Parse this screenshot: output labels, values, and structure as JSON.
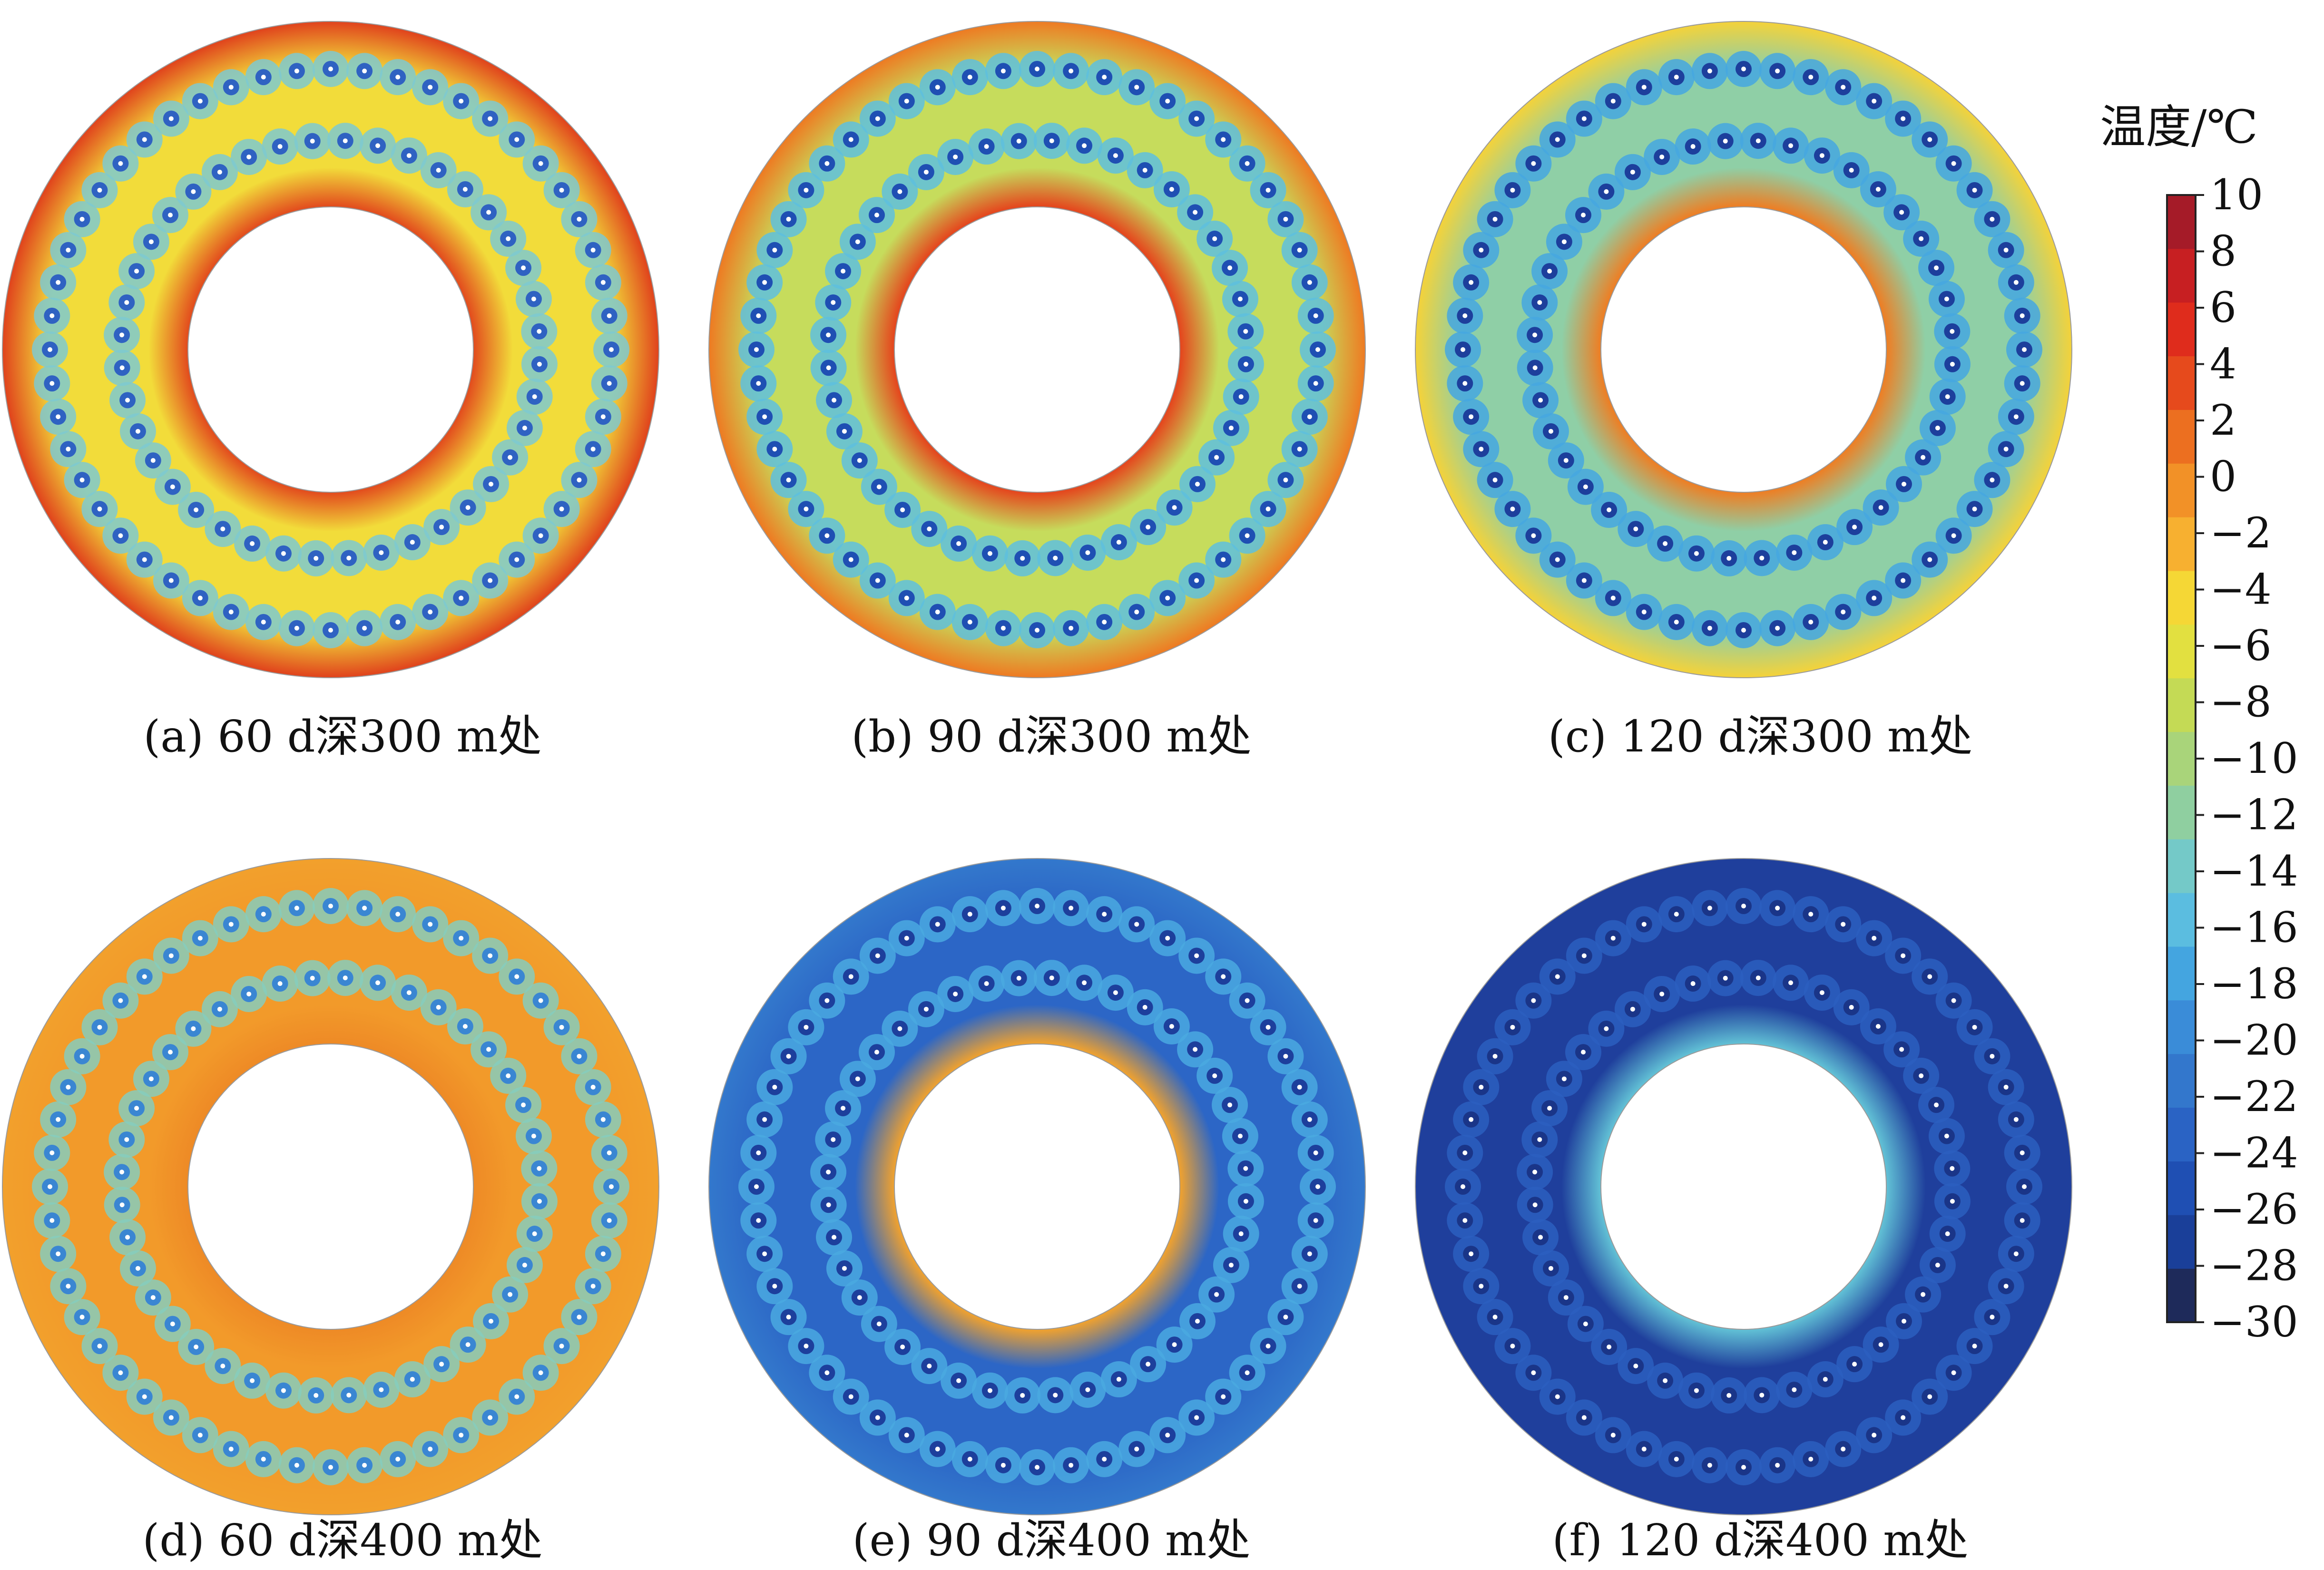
{
  "chart_data": {
    "type": "heatmap",
    "title": "",
    "colorbar": {
      "title": "温度/℃",
      "min": -30,
      "max": 10,
      "ticks": [
        10,
        8,
        6,
        4,
        2,
        0,
        -2,
        -4,
        -6,
        -8,
        -10,
        -12,
        -14,
        -16,
        -18,
        -20,
        -22,
        -24,
        -26,
        -28,
        -30
      ],
      "tick_labels": [
        "10",
        "8",
        "6",
        "4",
        "2",
        "0",
        "−2",
        "−4",
        "−6",
        "−8",
        "−10",
        "−12",
        "−14",
        "−16",
        "−18",
        "−20",
        "−22",
        "−24",
        "−26",
        "−28",
        "−30"
      ],
      "colors": [
        "#1e2a5a",
        "#1a3f99",
        "#1f4fb3",
        "#2a63c4",
        "#3377cc",
        "#3a8cd8",
        "#44a5e0",
        "#5bbde0",
        "#74c9c8",
        "#8fcfa0",
        "#a9d47a",
        "#c4da55",
        "#e2e040",
        "#f5d735",
        "#f7b030",
        "#f29127",
        "#ec6f20",
        "#e64a1c",
        "#df2c1c",
        "#c71f22",
        "#a51b28"
      ]
    },
    "panels": [
      {
        "id": "a",
        "caption": "(a)  60 d深300 m处",
        "day": 60,
        "depth_m": 300,
        "ring_temp": -3,
        "near_inner_temp": 6,
        "near_outer_temp": 6,
        "pipe_temp": -18,
        "colors": {
          "base": "#f2dc3a",
          "inner": "#e24a1d",
          "outer": "#e0421c",
          "halo": "#7ec9d0",
          "core": "#2f62c2"
        }
      },
      {
        "id": "b",
        "caption": "(b)  90 d深300 m处",
        "day": 90,
        "depth_m": 300,
        "ring_temp": -6,
        "near_inner_temp": 6,
        "near_outer_temp": 2,
        "pipe_temp": -26,
        "colors": {
          "base": "#c6dc5c",
          "inner": "#e5431c",
          "outer": "#ee7a22",
          "halo": "#5ec0de",
          "core": "#1f4fb3"
        }
      },
      {
        "id": "c",
        "caption": "(c)  120 d深300 m处",
        "day": 120,
        "depth_m": 300,
        "ring_temp": -10,
        "near_inner_temp": 2,
        "near_outer_temp": -4,
        "pipe_temp": -28,
        "colors": {
          "base": "#8fcfa6",
          "inner": "#ef7d22",
          "outer": "#f4d23a",
          "halo": "#45a7e0",
          "core": "#1d3f9c"
        }
      },
      {
        "id": "d",
        "caption": "(d)  60 d深400 m处",
        "day": 60,
        "depth_m": 400,
        "ring_temp": 1,
        "near_inner_temp": 1,
        "near_outer_temp": 1,
        "pipe_temp": -16,
        "colors": {
          "base": "#f29a2a",
          "inner": "#ee8a26",
          "outer": "#f2a02c",
          "halo": "#86cdbd",
          "core": "#3a86d2"
        }
      },
      {
        "id": "e",
        "caption": "(e)  90 d深400 m处",
        "day": 90,
        "depth_m": 400,
        "ring_temp": -22,
        "near_inner_temp": 0,
        "near_outer_temp": -20,
        "pipe_temp": -28,
        "colors": {
          "base": "#2c66c6",
          "inner": "#f2a22d",
          "outer": "#3378cc",
          "halo": "#4aa9e0",
          "core": "#1d3f9c"
        }
      },
      {
        "id": "f",
        "caption": "(f)  120 d深400 m处",
        "day": 120,
        "depth_m": 400,
        "ring_temp": -27,
        "near_inner_temp": -14,
        "near_outer_temp": -27,
        "pipe_temp": -29,
        "colors": {
          "base": "#1f3f9c",
          "inner": "#62c2d6",
          "outer": "#1f3f9c",
          "halo": "#2b5fbf",
          "core": "#1a3588"
        }
      }
    ]
  }
}
